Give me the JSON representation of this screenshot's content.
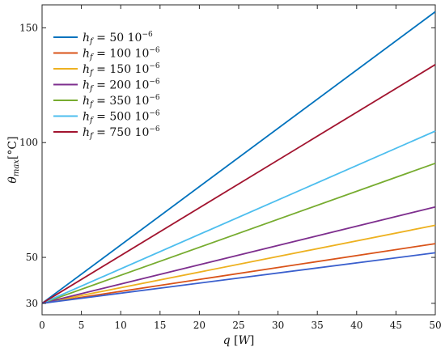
{
  "chart_data": {
    "type": "line",
    "title": "",
    "xlabel": "q [W]",
    "ylabel": "θ_max[°C]",
    "xlim": [
      0,
      50
    ],
    "ylim": [
      25,
      160
    ],
    "x_ticks": [
      0,
      5,
      10,
      15,
      20,
      25,
      30,
      35,
      40,
      45,
      50
    ],
    "y_ticks": [
      30,
      50,
      100,
      150
    ],
    "grid": false,
    "legend_position": "top-left",
    "series": [
      {
        "name": "h_f = 50 10^-6",
        "color": "#0072BD",
        "x": [
          0,
          50
        ],
        "y": [
          30,
          157
        ]
      },
      {
        "name": "h_f = 100 10^-6",
        "color": "#D95319",
        "x": [
          0,
          50
        ],
        "y": [
          30,
          56
        ]
      },
      {
        "name": "h_f = 150 10^-6",
        "color": "#EDB120",
        "x": [
          0,
          50
        ],
        "y": [
          30,
          64
        ]
      },
      {
        "name": "h_f = 200 10^-6",
        "color": "#7E2F8E",
        "x": [
          0,
          50
        ],
        "y": [
          30,
          72
        ]
      },
      {
        "name": "h_f = 350 10^-6",
        "color": "#77AC30",
        "x": [
          0,
          50
        ],
        "y": [
          30,
          91
        ]
      },
      {
        "name": "h_f = 500 10^-6",
        "color": "#4DBEEE",
        "x": [
          0,
          50
        ],
        "y": [
          30,
          105
        ]
      },
      {
        "name": "h_f = 750 10^-6",
        "color": "#A2142F",
        "x": [
          0,
          50
        ],
        "y": [
          30,
          134
        ]
      },
      {
        "name": "",
        "color": "#3A5FCD",
        "x": [
          0,
          50
        ],
        "y": [
          30,
          52
        ]
      }
    ],
    "legend": [
      {
        "math": "h",
        "sub": "f",
        "eq": " = ",
        "value": "50",
        "mantissa": " 10",
        "exp": "−6",
        "color": "#0072BD"
      },
      {
        "math": "h",
        "sub": "f",
        "eq": " = ",
        "value": "100",
        "mantissa": " 10",
        "exp": "−6",
        "color": "#D95319"
      },
      {
        "math": "h",
        "sub": "f",
        "eq": " = ",
        "value": "150",
        "mantissa": " 10",
        "exp": "−6",
        "color": "#EDB120"
      },
      {
        "math": "h",
        "sub": "f",
        "eq": " = ",
        "value": "200",
        "mantissa": " 10",
        "exp": "−6",
        "color": "#7E2F8E"
      },
      {
        "math": "h",
        "sub": "f",
        "eq": " = ",
        "value": "350",
        "mantissa": " 10",
        "exp": "−6",
        "color": "#77AC30"
      },
      {
        "math": "h",
        "sub": "f",
        "eq": " = ",
        "value": "500",
        "mantissa": " 10",
        "exp": "−6",
        "color": "#4DBEEE"
      },
      {
        "math": "h",
        "sub": "f",
        "eq": " = ",
        "value": "750",
        "mantissa": " 10",
        "exp": "−6",
        "color": "#A2142F"
      }
    ],
    "axis_labels": {
      "x": {
        "main": "q",
        "bracket_open": " [",
        "unit": "W",
        "bracket_close": "]"
      },
      "y": {
        "main": "θ",
        "sub": "max",
        "bracket_open": "[",
        "unit": "°C",
        "bracket_close": "]"
      }
    }
  }
}
